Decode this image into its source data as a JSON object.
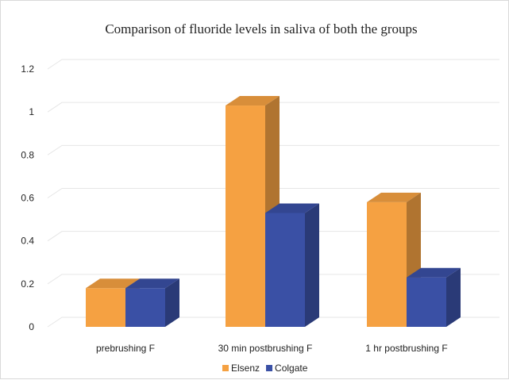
{
  "chart_data": {
    "type": "bar",
    "title": "Comparison of fluoride levels in saliva of both the groups",
    "categories": [
      "prebrushing F",
      "30 min postbrushing F",
      "1 hr postbrushing F"
    ],
    "series": [
      {
        "name": "Elsenz",
        "values": [
          0.18,
          1.03,
          0.58
        ],
        "color": "#f5a142"
      },
      {
        "name": "Colgate",
        "values": [
          0.18,
          0.53,
          0.23
        ],
        "color": "#3a50a5"
      }
    ],
    "yticks": [
      "0",
      "0.2",
      "0.4",
      "0.6",
      "0.8",
      "1",
      "1.2"
    ],
    "ylim": [
      0,
      1.2
    ],
    "grid": true,
    "legend": "bottom",
    "style": "3d-clustered-column"
  }
}
